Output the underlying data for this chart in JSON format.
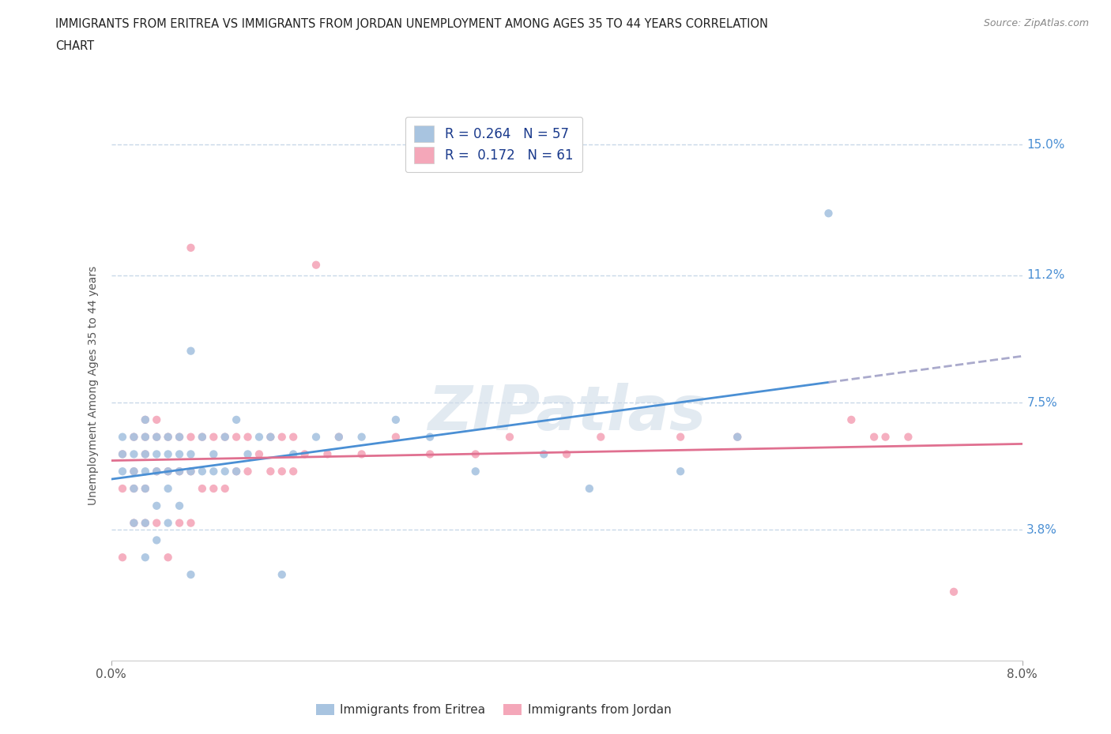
{
  "title_line1": "IMMIGRANTS FROM ERITREA VS IMMIGRANTS FROM JORDAN UNEMPLOYMENT AMONG AGES 35 TO 44 YEARS CORRELATION",
  "title_line2": "CHART",
  "source_text": "Source: ZipAtlas.com",
  "ylabel": "Unemployment Among Ages 35 to 44 years",
  "xlim": [
    0.0,
    0.08
  ],
  "ylim": [
    0.0,
    0.16
  ],
  "ytick_positions": [
    0.038,
    0.075,
    0.112,
    0.15
  ],
  "yticklabels_right": [
    "3.8%",
    "7.5%",
    "11.2%",
    "15.0%"
  ],
  "xticklabels_bottom": [
    "0.0%",
    "8.0%"
  ],
  "eritrea_color": "#a8c4e0",
  "jordan_color": "#f4a7b9",
  "eritrea_line_color": "#4a8fd4",
  "jordan_line_color": "#e07090",
  "eritrea_R": 0.264,
  "eritrea_N": 57,
  "jordan_R": 0.172,
  "jordan_N": 61,
  "watermark_text": "ZIPatlas",
  "background_color": "#ffffff",
  "grid_color": "#c8d8e8",
  "ytick_color": "#4a8fd4",
  "legend_label_eritrea": "Immigrants from Eritrea",
  "legend_label_jordan": "Immigrants from Jordan",
  "eritrea_x": [
    0.001,
    0.001,
    0.001,
    0.002,
    0.002,
    0.002,
    0.002,
    0.002,
    0.003,
    0.003,
    0.003,
    0.003,
    0.003,
    0.003,
    0.003,
    0.004,
    0.004,
    0.004,
    0.004,
    0.004,
    0.005,
    0.005,
    0.005,
    0.005,
    0.005,
    0.006,
    0.006,
    0.006,
    0.006,
    0.007,
    0.007,
    0.007,
    0.007,
    0.008,
    0.008,
    0.009,
    0.009,
    0.01,
    0.01,
    0.011,
    0.011,
    0.012,
    0.013,
    0.014,
    0.015,
    0.016,
    0.018,
    0.02,
    0.022,
    0.025,
    0.028,
    0.032,
    0.038,
    0.042,
    0.05,
    0.055,
    0.063
  ],
  "eritrea_y": [
    0.055,
    0.06,
    0.065,
    0.04,
    0.05,
    0.055,
    0.06,
    0.065,
    0.03,
    0.04,
    0.05,
    0.055,
    0.06,
    0.065,
    0.07,
    0.035,
    0.045,
    0.055,
    0.06,
    0.065,
    0.04,
    0.05,
    0.055,
    0.06,
    0.065,
    0.045,
    0.055,
    0.06,
    0.065,
    0.025,
    0.055,
    0.06,
    0.09,
    0.055,
    0.065,
    0.055,
    0.06,
    0.055,
    0.065,
    0.055,
    0.07,
    0.06,
    0.065,
    0.065,
    0.025,
    0.06,
    0.065,
    0.065,
    0.065,
    0.07,
    0.065,
    0.055,
    0.06,
    0.05,
    0.055,
    0.065,
    0.13
  ],
  "jordan_x": [
    0.001,
    0.001,
    0.001,
    0.002,
    0.002,
    0.002,
    0.002,
    0.003,
    0.003,
    0.003,
    0.003,
    0.003,
    0.004,
    0.004,
    0.004,
    0.004,
    0.005,
    0.005,
    0.005,
    0.006,
    0.006,
    0.006,
    0.007,
    0.007,
    0.007,
    0.007,
    0.008,
    0.008,
    0.009,
    0.009,
    0.01,
    0.01,
    0.011,
    0.011,
    0.012,
    0.012,
    0.013,
    0.014,
    0.014,
    0.015,
    0.015,
    0.016,
    0.016,
    0.017,
    0.018,
    0.019,
    0.02,
    0.022,
    0.025,
    0.028,
    0.032,
    0.035,
    0.04,
    0.043,
    0.05,
    0.055,
    0.065,
    0.067,
    0.068,
    0.07,
    0.074
  ],
  "jordan_y": [
    0.03,
    0.05,
    0.06,
    0.04,
    0.05,
    0.055,
    0.065,
    0.04,
    0.05,
    0.06,
    0.065,
    0.07,
    0.04,
    0.055,
    0.065,
    0.07,
    0.03,
    0.055,
    0.065,
    0.04,
    0.055,
    0.065,
    0.04,
    0.055,
    0.065,
    0.12,
    0.05,
    0.065,
    0.05,
    0.065,
    0.05,
    0.065,
    0.055,
    0.065,
    0.055,
    0.065,
    0.06,
    0.055,
    0.065,
    0.055,
    0.065,
    0.055,
    0.065,
    0.06,
    0.115,
    0.06,
    0.065,
    0.06,
    0.065,
    0.06,
    0.06,
    0.065,
    0.06,
    0.065,
    0.065,
    0.065,
    0.07,
    0.065,
    0.065,
    0.065,
    0.02
  ]
}
